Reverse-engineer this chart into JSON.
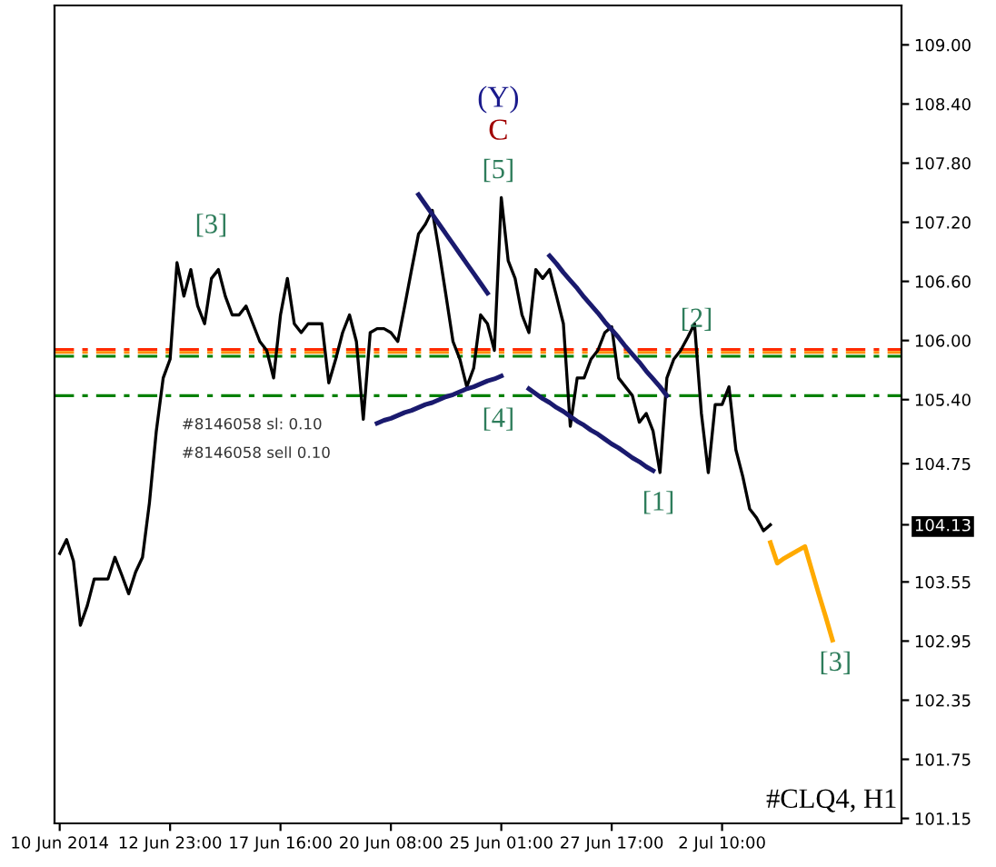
{
  "chart_data": {
    "type": "line",
    "categories": [
      "10 Jun 2014",
      null,
      null,
      null,
      null,
      null,
      null,
      null,
      null,
      null,
      null,
      null,
      null,
      null,
      null,
      null,
      "12 Jun 23:00",
      null,
      null,
      null,
      null,
      null,
      null,
      null,
      null,
      null,
      null,
      null,
      null,
      null,
      null,
      null,
      "17 Jun 16:00",
      null,
      null,
      null,
      null,
      null,
      null,
      null,
      null,
      null,
      null,
      null,
      null,
      null,
      null,
      null,
      "20 Jun 08:00",
      null,
      null,
      null,
      null,
      null,
      null,
      null,
      null,
      null,
      null,
      null,
      null,
      null,
      null,
      null,
      "25 Jun 01:00",
      null,
      null,
      null,
      null,
      null,
      null,
      null,
      null,
      null,
      null,
      null,
      null,
      null,
      null,
      null,
      "27 Jun 17:00",
      null,
      null,
      null,
      null,
      null,
      null,
      null,
      null,
      null,
      null,
      null,
      null,
      null,
      null,
      null,
      "2 Jul 10:00",
      null,
      null,
      null,
      null,
      null,
      null,
      null,
      null,
      null,
      null,
      null,
      null,
      null,
      null,
      null,
      null
    ],
    "series": [
      {
        "color": "#000000",
        "values": [
          103.84,
          103.98,
          103.76,
          103.11,
          103.31,
          103.58,
          103.58,
          103.58,
          103.8,
          103.62,
          103.43,
          103.65,
          103.8,
          104.35,
          105.08,
          105.62,
          105.81,
          106.79,
          106.45,
          106.72,
          106.35,
          106.17,
          106.63,
          106.72,
          106.45,
          106.26,
          106.26,
          106.35,
          106.17,
          105.99,
          105.9,
          105.62,
          106.26,
          106.63,
          106.17,
          106.08,
          106.17,
          106.17,
          106.17,
          105.57,
          105.81,
          106.08,
          106.26,
          105.99,
          105.2,
          106.08,
          106.12,
          106.12,
          106.08,
          105.99,
          106.35,
          106.72,
          107.08,
          107.18,
          107.32,
          106.9,
          106.45,
          105.99,
          105.81,
          105.53,
          105.72,
          106.26,
          106.17,
          105.9,
          107.45,
          106.81,
          106.63,
          106.26,
          106.08,
          106.72,
          106.63,
          106.72,
          106.45,
          106.17,
          105.13,
          105.62,
          105.62,
          105.81,
          105.9,
          106.08,
          106.14,
          105.62,
          105.53,
          105.44,
          105.17,
          105.26,
          105.08,
          104.66,
          105.62,
          105.81,
          105.9,
          106.03,
          106.17,
          105.26,
          104.66,
          105.35,
          105.35,
          105.53,
          104.89,
          104.62,
          104.29,
          104.2,
          104.07,
          104.13,
          null,
          null,
          null,
          null,
          null,
          null,
          null,
          null,
          null
        ]
      },
      {
        "color": "#ffaa00",
        "values": [
          null,
          null,
          null,
          null,
          null,
          null,
          null,
          null,
          null,
          null,
          null,
          null,
          null,
          null,
          null,
          null,
          null,
          null,
          null,
          null,
          null,
          null,
          null,
          null,
          null,
          null,
          null,
          null,
          null,
          null,
          null,
          null,
          null,
          null,
          null,
          null,
          null,
          null,
          null,
          null,
          null,
          null,
          null,
          null,
          null,
          null,
          null,
          null,
          null,
          null,
          null,
          null,
          null,
          null,
          null,
          null,
          null,
          null,
          null,
          null,
          null,
          null,
          null,
          null,
          null,
          null,
          null,
          null,
          null,
          null,
          null,
          null,
          null,
          null,
          null,
          null,
          null,
          null,
          null,
          null,
          null,
          null,
          null,
          null,
          null,
          null,
          null,
          null,
          null,
          null,
          null,
          null,
          null,
          null,
          null,
          null,
          null,
          null,
          null,
          null,
          null,
          null,
          null,
          103.95,
          103.74,
          103.79,
          103.83,
          103.87,
          103.91,
          103.67,
          103.43,
          103.2,
          102.96
        ]
      },
      {
        "color": "#1a1a6e",
        "values": [
          null,
          null,
          null,
          null,
          null,
          null,
          null,
          null,
          null,
          null,
          null,
          null,
          null,
          null,
          null,
          null,
          null,
          null,
          null,
          null,
          null,
          null,
          null,
          null,
          null,
          null,
          null,
          null,
          null,
          null,
          null,
          null,
          null,
          null,
          null,
          null,
          null,
          null,
          null,
          null,
          null,
          null,
          null,
          null,
          null,
          null,
          null,
          null,
          null,
          null,
          null,
          null,
          107.48,
          107.38,
          107.28,
          107.18,
          107.08,
          106.98,
          106.88,
          106.78,
          106.68,
          106.58,
          106.48,
          null,
          null,
          null,
          null,
          null,
          null,
          null,
          null,
          null,
          null,
          null,
          null,
          null,
          null,
          null,
          null,
          null,
          null,
          null,
          null,
          null,
          null,
          null,
          null,
          null,
          null,
          null,
          null,
          null,
          null,
          null,
          null,
          null,
          null,
          null,
          null,
          null,
          null,
          null,
          null,
          null,
          null,
          null,
          null,
          null,
          null,
          null,
          null,
          null,
          null
        ]
      },
      {
        "color": "#1a1a6e",
        "values": [
          null,
          null,
          null,
          null,
          null,
          null,
          null,
          null,
          null,
          null,
          null,
          null,
          null,
          null,
          null,
          null,
          null,
          null,
          null,
          null,
          null,
          null,
          null,
          null,
          null,
          null,
          null,
          null,
          null,
          null,
          null,
          null,
          null,
          null,
          null,
          null,
          null,
          null,
          null,
          null,
          null,
          null,
          null,
          null,
          null,
          null,
          105.16,
          105.19,
          105.21,
          105.24,
          105.27,
          105.29,
          105.32,
          105.35,
          105.37,
          105.4,
          105.43,
          105.45,
          105.48,
          105.51,
          105.53,
          105.56,
          105.59,
          105.61,
          105.64,
          null,
          null,
          null,
          null,
          null,
          null,
          null,
          null,
          null,
          null,
          null,
          null,
          null,
          null,
          null,
          null,
          null,
          null,
          null,
          null,
          null,
          null,
          null,
          null,
          null,
          null,
          null,
          null,
          null,
          null,
          null,
          null,
          null,
          null,
          null,
          null,
          null,
          null,
          null,
          null,
          null,
          null,
          null,
          null,
          null,
          null,
          null,
          null
        ]
      },
      {
        "color": "#1a1a6e",
        "values": [
          null,
          null,
          null,
          null,
          null,
          null,
          null,
          null,
          null,
          null,
          null,
          null,
          null,
          null,
          null,
          null,
          null,
          null,
          null,
          null,
          null,
          null,
          null,
          null,
          null,
          null,
          null,
          null,
          null,
          null,
          null,
          null,
          null,
          null,
          null,
          null,
          null,
          null,
          null,
          null,
          null,
          null,
          null,
          null,
          null,
          null,
          null,
          null,
          null,
          null,
          null,
          null,
          null,
          null,
          null,
          null,
          null,
          null,
          null,
          null,
          null,
          null,
          null,
          null,
          null,
          null,
          null,
          null,
          105.51,
          105.46,
          105.41,
          105.37,
          105.32,
          105.28,
          105.23,
          105.18,
          105.14,
          105.09,
          105.05,
          105.0,
          104.95,
          104.91,
          104.86,
          104.81,
          104.77,
          104.72,
          104.68,
          null,
          null,
          null,
          null,
          null,
          null,
          null,
          null,
          null,
          null,
          null,
          null,
          null,
          null,
          null,
          null,
          null,
          null,
          null,
          null,
          null,
          null,
          null,
          null,
          null,
          null
        ]
      },
      {
        "color": "#1a1a6e",
        "values": [
          null,
          null,
          null,
          null,
          null,
          null,
          null,
          null,
          null,
          null,
          null,
          null,
          null,
          null,
          null,
          null,
          null,
          null,
          null,
          null,
          null,
          null,
          null,
          null,
          null,
          null,
          null,
          null,
          null,
          null,
          null,
          null,
          null,
          null,
          null,
          null,
          null,
          null,
          null,
          null,
          null,
          null,
          null,
          null,
          null,
          null,
          null,
          null,
          null,
          null,
          null,
          null,
          null,
          null,
          null,
          null,
          null,
          null,
          null,
          null,
          null,
          null,
          null,
          null,
          null,
          null,
          null,
          null,
          null,
          null,
          null,
          106.86,
          106.78,
          106.69,
          106.61,
          106.53,
          106.44,
          106.36,
          106.28,
          106.19,
          106.11,
          106.03,
          105.94,
          105.86,
          105.78,
          105.69,
          105.61,
          105.53,
          105.44,
          null,
          null,
          null,
          null,
          null,
          null,
          null,
          null,
          null,
          null,
          null,
          null,
          null,
          null,
          null,
          null,
          null,
          null,
          null,
          null,
          null,
          null,
          null,
          null
        ]
      }
    ],
    "ylim": [
      101.1,
      109.4
    ],
    "yticks": [
      {
        "value": 109.0,
        "label": "109.00"
      },
      {
        "value": 108.4,
        "label": "108.40"
      },
      {
        "value": 107.8,
        "label": "107.80"
      },
      {
        "value": 107.2,
        "label": "107.20"
      },
      {
        "value": 106.6,
        "label": "106.60"
      },
      {
        "value": 106.0,
        "label": "106.00"
      },
      {
        "value": 105.4,
        "label": "105.40"
      },
      104.75,
      104.13,
      103.55,
      102.95,
      102.35,
      101.75,
      101.15
    ],
    "ref_lines": [
      {
        "axis": "y",
        "value": 105.91,
        "color": "#ff2a00",
        "line_style": "dashed"
      },
      {
        "axis": "y",
        "value": 105.88,
        "color": "#ff8c00",
        "line_style": "dashed"
      },
      {
        "axis": "y",
        "value": 105.84,
        "color": "#008000",
        "line_style": "dashed"
      },
      {
        "axis": "y",
        "value": 105.44,
        "color": "#008000",
        "line_style": "dashed"
      }
    ],
    "annotations": [
      "(Y)",
      "C",
      "[5]",
      "[3]",
      "[4]",
      "[1]",
      "[2]",
      "[3]",
      "#8146058 sl: 0.10",
      "#8146058 sell 0.10",
      "#CLQ4, H1"
    ],
    "grid": false,
    "legend": false,
    "marker": "none",
    "line_style": "solid"
  }
}
